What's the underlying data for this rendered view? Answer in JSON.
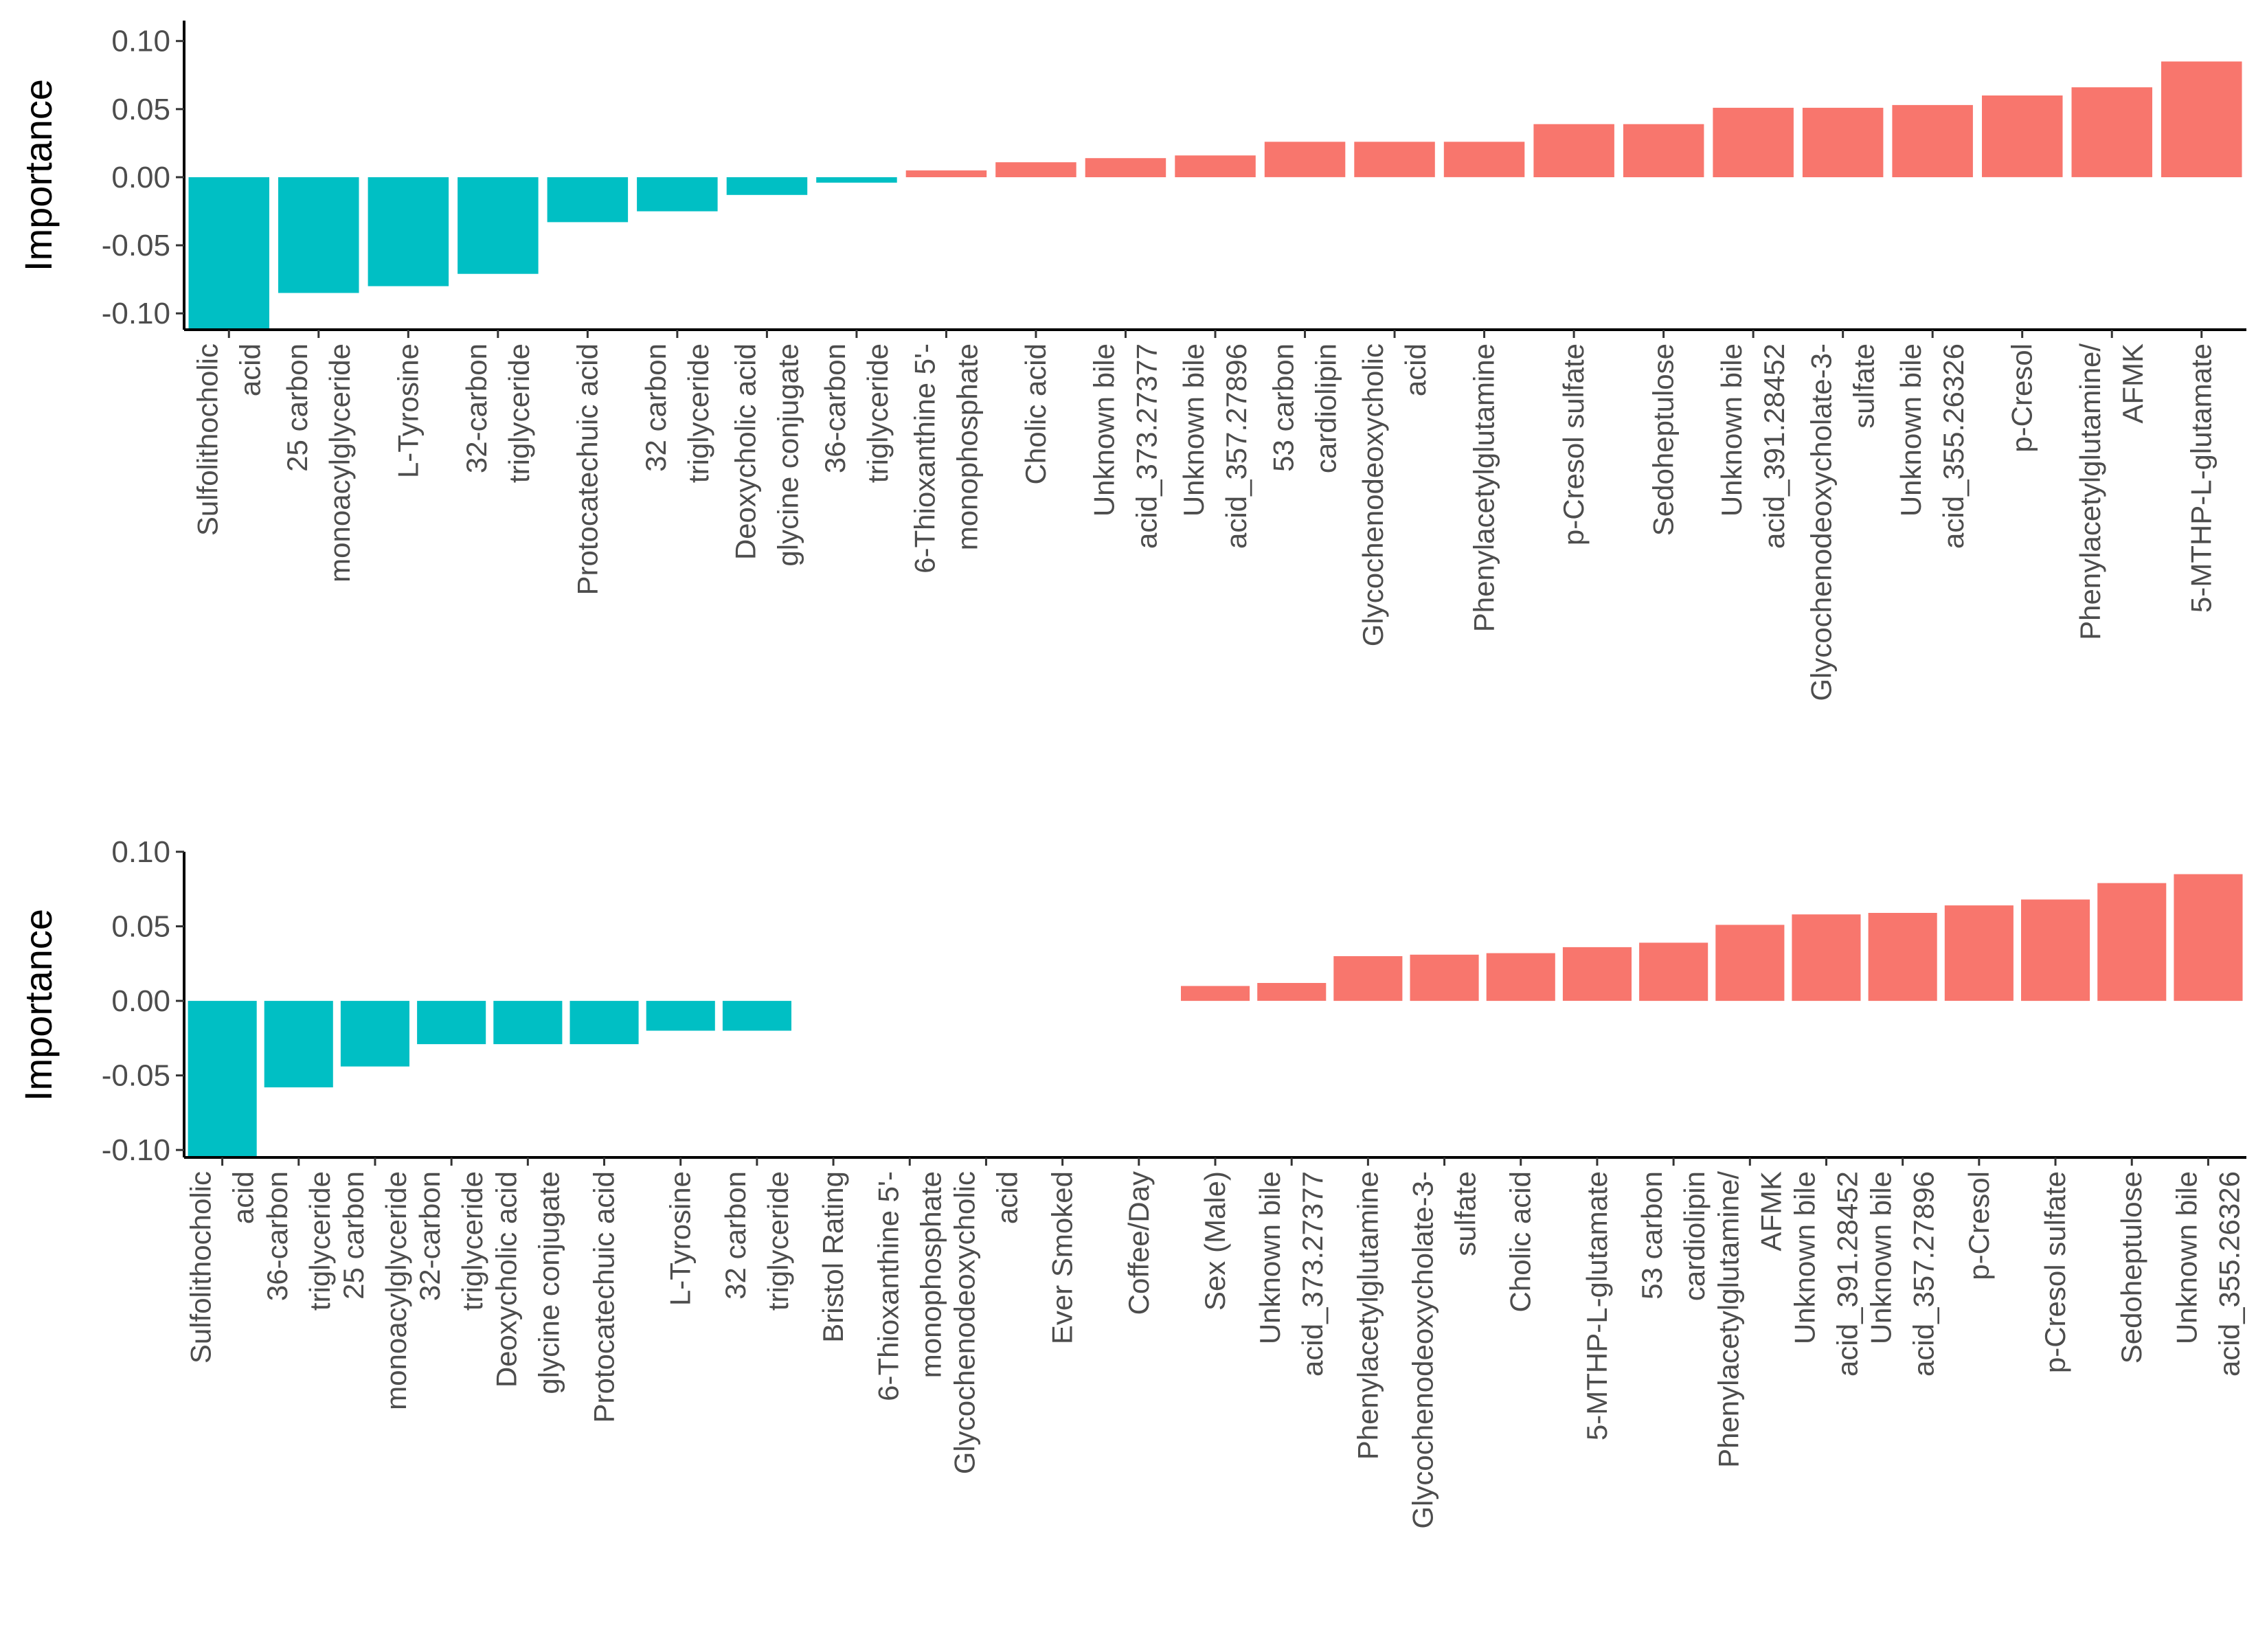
{
  "colors": {
    "positive": "#f8766d",
    "negative": "#00bfc4"
  },
  "chart_data": [
    {
      "type": "bar",
      "title": "",
      "xlabel": "",
      "ylabel": "Importance",
      "ylim": [
        -0.112,
        0.115
      ],
      "yticks": [
        0.1,
        0.05,
        0.0,
        -0.05,
        -0.1
      ],
      "ytick_labels": [
        "0.10",
        "0.05",
        "0.00",
        "-0.05",
        "-0.10"
      ],
      "categories": [
        [
          "Sulfolithocholic",
          "acid"
        ],
        [
          "25 carbon",
          "monoacylglyceride"
        ],
        [
          "L-Tyrosine"
        ],
        [
          "32-carbon",
          "triglyceride"
        ],
        [
          "Protocatechuic acid"
        ],
        [
          "32 carbon",
          "triglyceride"
        ],
        [
          "Deoxycholic acid",
          "glycine conjugate"
        ],
        [
          "36-carbon",
          "triglyceride"
        ],
        [
          "6-Thioxanthine 5'-",
          "monophosphate"
        ],
        [
          "Cholic acid"
        ],
        [
          "Unknown bile",
          "acid_373.27377"
        ],
        [
          "Unknown bile",
          "acid_357.27896"
        ],
        [
          "53 carbon",
          "cardiolipin"
        ],
        [
          "Glycochenodeoxycholic",
          "acid"
        ],
        [
          "Phenylacetylglutamine"
        ],
        [
          "p-Cresol sulfate"
        ],
        [
          "Sedoheptulose"
        ],
        [
          "Unknown bile",
          "acid_391.28452"
        ],
        [
          "Glycochenodeoxycholate-3-",
          "sulfate"
        ],
        [
          "Unknown bile",
          "acid_355.26326"
        ],
        [
          "p-Cresol"
        ],
        [
          "Phenylacetylglutamine/",
          "AFMK"
        ],
        [
          "5-MTHP-L-glutamate"
        ]
      ],
      "values": [
        -0.112,
        -0.085,
        -0.08,
        -0.071,
        -0.033,
        -0.025,
        -0.013,
        -0.004,
        0.005,
        0.011,
        0.014,
        0.016,
        0.026,
        0.026,
        0.026,
        0.039,
        0.039,
        0.051,
        0.051,
        0.053,
        0.06,
        0.066,
        0.085
      ]
    },
    {
      "type": "bar",
      "title": "",
      "xlabel": "",
      "ylabel": "Importance",
      "ylim": [
        -0.105,
        0.1
      ],
      "yticks": [
        0.1,
        0.05,
        0.0,
        -0.05,
        -0.1
      ],
      "ytick_labels": [
        "0.10",
        "0.05",
        "0.00",
        "-0.05",
        "-0.10"
      ],
      "categories": [
        [
          "Sulfolithocholic",
          "acid"
        ],
        [
          "36-carbon",
          "triglyceride"
        ],
        [
          "25 carbon",
          "monoacylglyceride"
        ],
        [
          "32-carbon",
          "triglyceride"
        ],
        [
          "Deoxycholic acid",
          "glycine conjugate"
        ],
        [
          "Protocatechuic acid"
        ],
        [
          "L-Tyrosine"
        ],
        [
          "32 carbon",
          "triglyceride"
        ],
        [
          "Bristol Rating"
        ],
        [
          "6-Thioxanthine 5'-",
          "monophosphate"
        ],
        [
          "Glycochenodeoxycholic",
          "acid"
        ],
        [
          "Ever Smoked"
        ],
        [
          "Coffee/Day"
        ],
        [
          "Sex (Male)"
        ],
        [
          "Unknown bile",
          "acid_373.27377"
        ],
        [
          "Phenylacetylglutamine"
        ],
        [
          "Glycochenodeoxycholate-3-",
          "sulfate"
        ],
        [
          "Cholic acid"
        ],
        [
          "5-MTHP-L-glutamate"
        ],
        [
          "53 carbon",
          "cardiolipin"
        ],
        [
          "Phenylacetylglutamine/",
          "AFMK"
        ],
        [
          "Unknown bile",
          "acid_391.28452"
        ],
        [
          "Unknown bile",
          "acid_357.27896"
        ],
        [
          "p-Cresol"
        ],
        [
          "p-Cresol sulfate"
        ],
        [
          "Sedoheptulose"
        ],
        [
          "Unknown bile",
          "acid_355.26326"
        ]
      ],
      "values": [
        -0.105,
        -0.058,
        -0.044,
        -0.029,
        -0.029,
        -0.029,
        -0.02,
        -0.02,
        0,
        0,
        0,
        0,
        0,
        0.01,
        0.012,
        0.03,
        0.031,
        0.032,
        0.036,
        0.039,
        0.051,
        0.058,
        0.059,
        0.064,
        0.068,
        0.079,
        0.085
      ]
    }
  ]
}
